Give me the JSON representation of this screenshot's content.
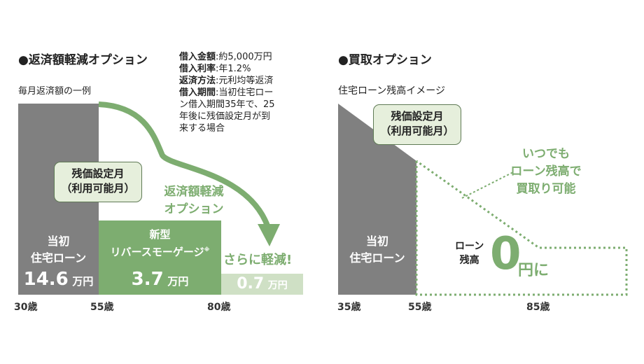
{
  "left": {
    "heading": "●返済額軽減オプション",
    "subheading": "毎月返済額の一例",
    "info": [
      {
        "key": "借入金額",
        "value": "約5,000万円"
      },
      {
        "key": "借入利率",
        "value": "年1.2%"
      },
      {
        "key": "返済方法",
        "value": "元利均等返済"
      },
      {
        "key": "借入期間",
        "value": "当初住宅ローン借入期間35年で、25年後に残価設定月が到来する場合"
      }
    ],
    "info_lines": [
      "ン借入期間35年で、25",
      "年後に残価設定月が到",
      "来する場合"
    ],
    "info_line0": "当初住宅ロー",
    "block1": {
      "line1": "当初",
      "line2": "住宅ローン",
      "amount": "14.6",
      "unit": "万円"
    },
    "block2": {
      "line1": "新型",
      "line2": "リバースモーゲージ",
      "note": "※",
      "amount": "3.7",
      "unit": "万円"
    },
    "block3": {
      "amount": "0.7",
      "unit": "万円"
    },
    "callout": {
      "line1": "残価設定月",
      "line2": "（利用可能月）"
    },
    "option_label": {
      "line1": "返済額軽減",
      "line2": "オプション"
    },
    "more_label": "さらに軽減!",
    "ages": [
      "30歳",
      "55歳",
      "80歳"
    ]
  },
  "right": {
    "heading": "●買取オプション",
    "subheading": "住宅ローン残高イメージ",
    "callout": {
      "line1": "残価設定月",
      "line2": "（利用可能月）"
    },
    "anytime": {
      "line1": "いつでも",
      "line2": "ローン残高で",
      "line3": "買取り可能"
    },
    "block": {
      "line1": "当初",
      "line2": "住宅ローン"
    },
    "zero": {
      "pre1": "ローン",
      "pre2": "残高",
      "big": "0",
      "suffix": "円に"
    },
    "ages": [
      "35歳",
      "55歳",
      "85歳"
    ]
  },
  "colors": {
    "gray": "#808080",
    "green": "#7dad70",
    "light_green": "#cfe0c5",
    "callout_bg": "#e6efdc",
    "callout_border": "#5f7a55"
  }
}
